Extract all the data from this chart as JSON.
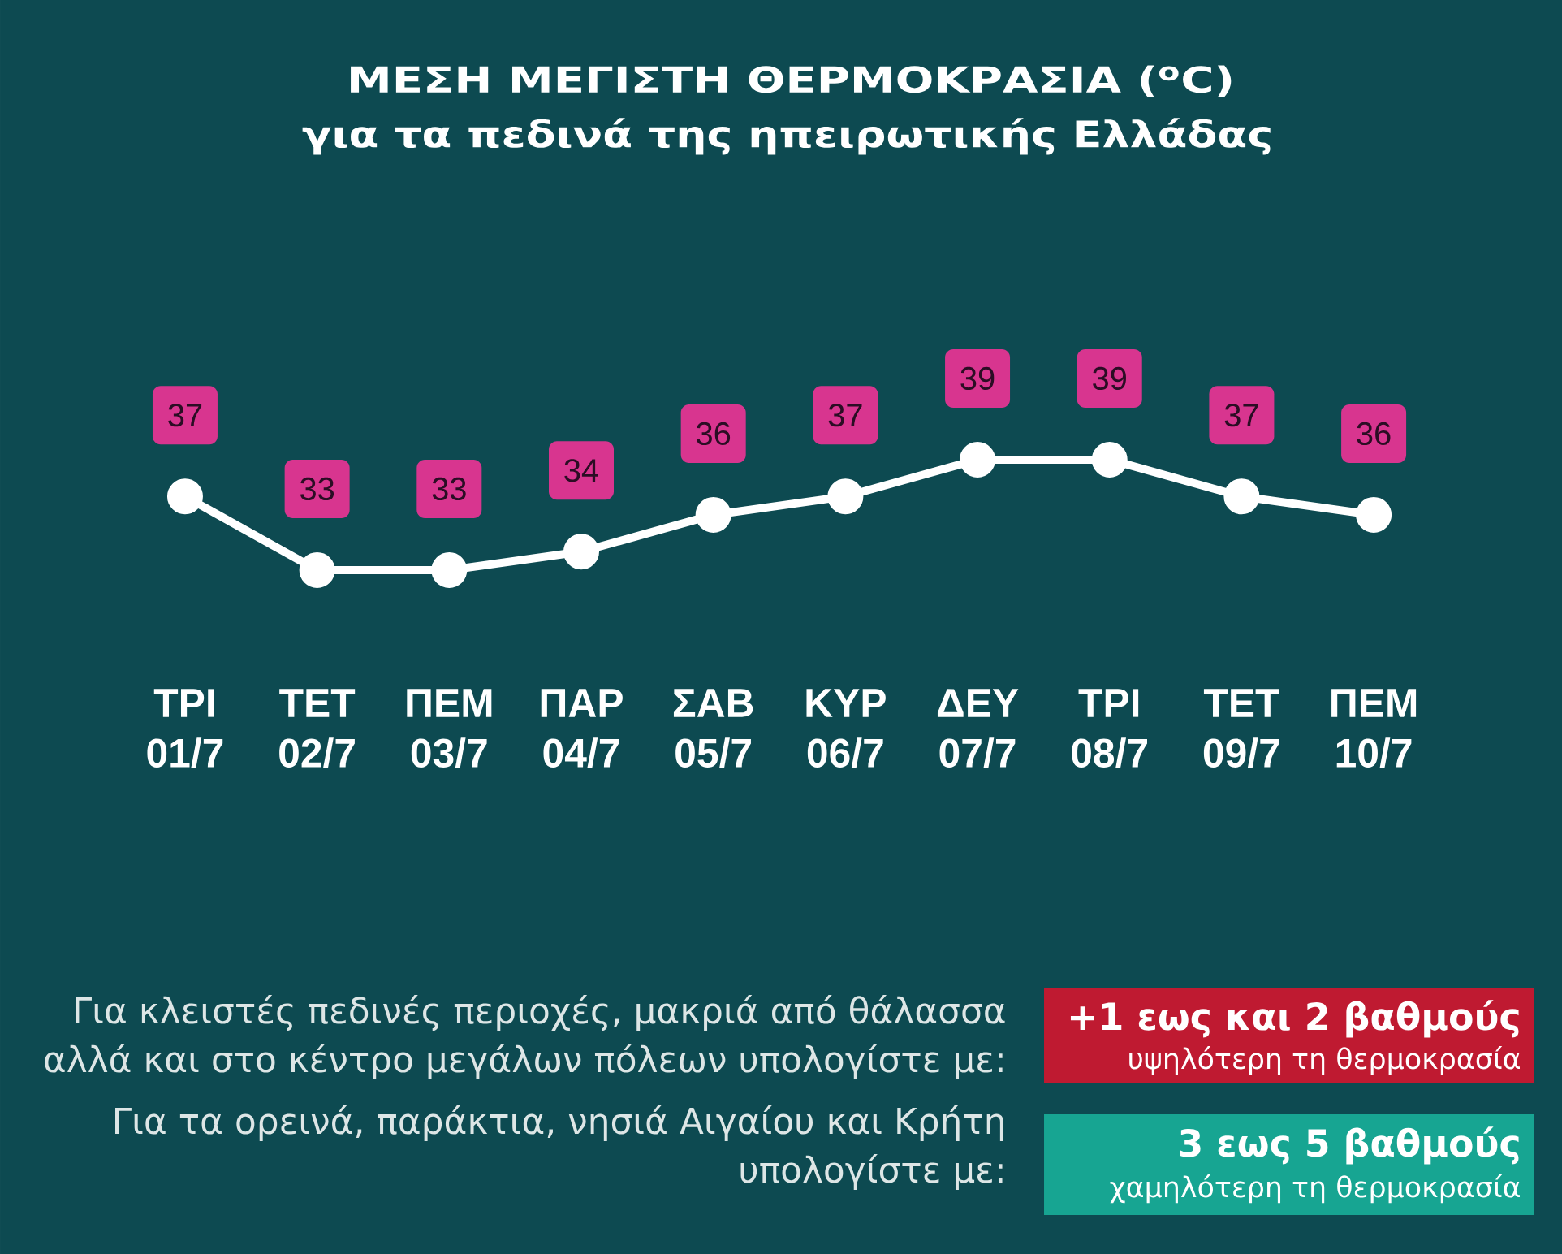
{
  "chart_data": {
    "type": "line",
    "title": "ΜΕΣΗ ΜΕΓΙΣΤΗ ΘΕΡΜΟΚΡΑΣΙΑ ($^{o}$C)",
    "subtitle": "για τα πεδινά της ηπειρωτικής Ελλάδας",
    "categories": [
      "ΤΡΙ 01/7",
      "ΤΕΤ 02/7",
      "ΠΕΜ 03/7",
      "ΠΑΡ 04/7",
      "ΣΑΒ 05/7",
      "ΚΥΡ 06/7",
      "ΔΕΥ 07/7",
      "ΤΡΙ 08/7",
      "ΤΕΤ 09/7",
      "ΠΕΜ 10/7"
    ],
    "values": [
      37,
      33,
      33,
      34,
      36,
      37,
      39,
      39,
      37,
      36
    ],
    "color": "#ffffff",
    "marker": "circle",
    "line_style": "solid",
    "data_labels": true,
    "tick_labels": "x",
    "annotations": [
      "Για κλειστές πεδινές περιοχές, μακριά από θάλασσα",
      "αλλά και στο κέντρο μεγάλων πόλεων υπολογίστε με:",
      "+1 εως και 2 βαθμούς",
      "υψηλότερη τη θερμοκρασία",
      "Για τα ορεινά, παράκτια, νησιά Αιγαίου και Κρήτη",
      "υπολογίστε με:",
      "3 εως 5 βαθμούς",
      "χαμηλότερη τη θερμοκρασία"
    ]
  }
}
